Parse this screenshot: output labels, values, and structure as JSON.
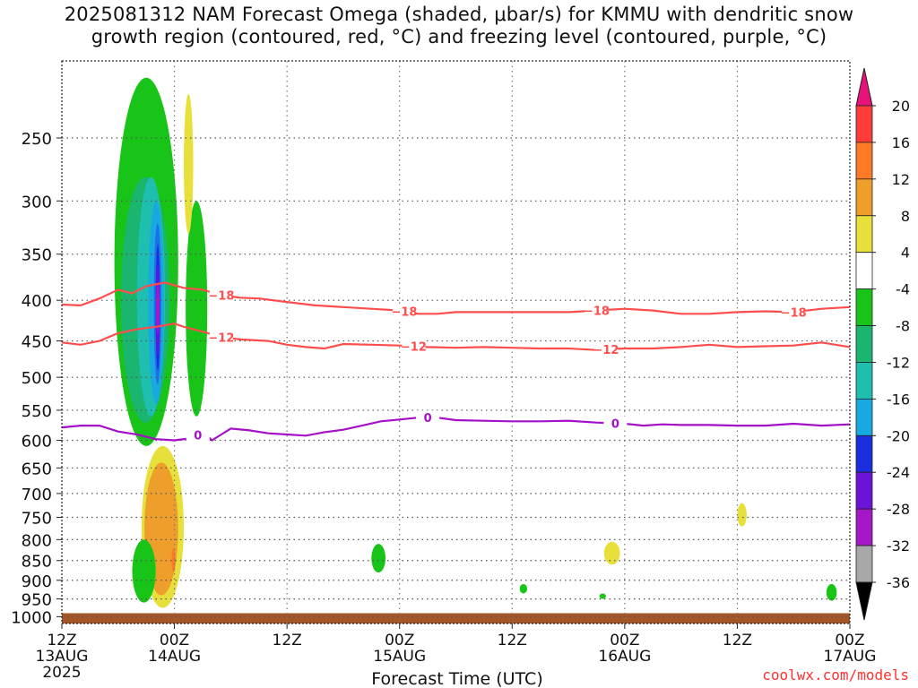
{
  "title": {
    "line1": "2025081312 NAM Forecast Omega (shaded, μbar/s) for KMMU with dendritic snow",
    "line2": "growth region (contoured, red, °C) and freezing level (contoured, purple, °C)"
  },
  "credit": "coolwx.com/models",
  "chart_data": {
    "type": "time-height cross section (filled contour + line contours)",
    "x_axis": {
      "label": "Forecast Time (UTC)",
      "ticks": [
        {
          "hour": 0,
          "label": "12Z",
          "sub": "13AUG",
          "year": "2025"
        },
        {
          "hour": 12,
          "label": "00Z",
          "sub": "14AUG"
        },
        {
          "hour": 24,
          "label": "12Z"
        },
        {
          "hour": 36,
          "label": "00Z",
          "sub": "15AUG"
        },
        {
          "hour": 48,
          "label": "12Z"
        },
        {
          "hour": 60,
          "label": "00Z",
          "sub": "16AUG"
        },
        {
          "hour": 72,
          "label": "12Z"
        },
        {
          "hour": 84,
          "label": "00Z",
          "sub": "17AUG"
        }
      ],
      "range_hours": [
        0,
        84
      ]
    },
    "y_axis": {
      "label": "",
      "units": "mb",
      "ticks": [
        250,
        300,
        350,
        400,
        450,
        500,
        550,
        600,
        650,
        700,
        750,
        800,
        850,
        900,
        950,
        1000
      ],
      "range": [
        200,
        1020
      ],
      "scale": "log-pressure",
      "reversed": true
    },
    "grid": "dotted",
    "colorbar": {
      "labels": [
        "20",
        "16",
        "12",
        "8",
        "4",
        "-4",
        "-8",
        "-12",
        "-16",
        "-20",
        "-24",
        "-28",
        "-32",
        "-36"
      ],
      "colors": [
        "#e8137a",
        "#ff3b3b",
        "#ff7a26",
        "#ee9f2b",
        "#e6c228",
        "#e8e03a",
        "#ffffff",
        "#17c417",
        "#1ab56e",
        "#1fbfb0",
        "#18a9e0",
        "#1f6fe8",
        "#1a2ee0",
        "#6b14d8",
        "#a617c8",
        "#a8a8a8",
        "#000000"
      ]
    },
    "contours": [
      {
        "name": "-18",
        "color": "#ff4d4d",
        "labels_at_hours": [
          17,
          36.5,
          57,
          78
        ],
        "points": [
          [
            0,
            405
          ],
          [
            2,
            406
          ],
          [
            4,
            398
          ],
          [
            6,
            388
          ],
          [
            7.5,
            392
          ],
          [
            9,
            384
          ],
          [
            11,
            380
          ],
          [
            12,
            383
          ],
          [
            13,
            386
          ],
          [
            15,
            388
          ],
          [
            17,
            394
          ],
          [
            19,
            397
          ],
          [
            21,
            398
          ],
          [
            24,
            402
          ],
          [
            27,
            406
          ],
          [
            30,
            408
          ],
          [
            33,
            410
          ],
          [
            36,
            412
          ],
          [
            38,
            416
          ],
          [
            40,
            416
          ],
          [
            42,
            414
          ],
          [
            45,
            414
          ],
          [
            48,
            414
          ],
          [
            51,
            414
          ],
          [
            54,
            414
          ],
          [
            57,
            412
          ],
          [
            60,
            410
          ],
          [
            63,
            412
          ],
          [
            66,
            416
          ],
          [
            69,
            416
          ],
          [
            72,
            414
          ],
          [
            75,
            413
          ],
          [
            78,
            414
          ],
          [
            81,
            410
          ],
          [
            84,
            408
          ]
        ]
      },
      {
        "name": "-12",
        "color": "#ff4d4d",
        "labels_at_hours": [
          17,
          37.5,
          58
        ],
        "points": [
          [
            0,
            452
          ],
          [
            2,
            455
          ],
          [
            4,
            450
          ],
          [
            6,
            440
          ],
          [
            8,
            435
          ],
          [
            10,
            432
          ],
          [
            12,
            428
          ],
          [
            13,
            432
          ],
          [
            15,
            438
          ],
          [
            17,
            445
          ],
          [
            19,
            448
          ],
          [
            22,
            450
          ],
          [
            24,
            455
          ],
          [
            26,
            458
          ],
          [
            28,
            460
          ],
          [
            30,
            454
          ],
          [
            33,
            455
          ],
          [
            36,
            456
          ],
          [
            39,
            458
          ],
          [
            42,
            459
          ],
          [
            45,
            458
          ],
          [
            48,
            459
          ],
          [
            51,
            460
          ],
          [
            54,
            460
          ],
          [
            57,
            462
          ],
          [
            60,
            460
          ],
          [
            63,
            460
          ],
          [
            66,
            458
          ],
          [
            69,
            455
          ],
          [
            72,
            458
          ],
          [
            75,
            457
          ],
          [
            78,
            456
          ],
          [
            81,
            452
          ],
          [
            84,
            458
          ]
        ]
      },
      {
        "name": "0",
        "color": "#a40fc8",
        "labels_at_hours": [
          14.5,
          39,
          59
        ],
        "points": [
          [
            0,
            578
          ],
          [
            2,
            575
          ],
          [
            4,
            575
          ],
          [
            6,
            585
          ],
          [
            8,
            590
          ],
          [
            10,
            598
          ],
          [
            12,
            600
          ],
          [
            14,
            596
          ],
          [
            15,
            585
          ],
          [
            16,
            600
          ],
          [
            17,
            590
          ],
          [
            18,
            580
          ],
          [
            20,
            583
          ],
          [
            22,
            588
          ],
          [
            24,
            590
          ],
          [
            26,
            592
          ],
          [
            28,
            586
          ],
          [
            30,
            582
          ],
          [
            32,
            575
          ],
          [
            34,
            568
          ],
          [
            36,
            565
          ],
          [
            38,
            562
          ],
          [
            40,
            562
          ],
          [
            42,
            566
          ],
          [
            45,
            567
          ],
          [
            48,
            568
          ],
          [
            51,
            568
          ],
          [
            54,
            567
          ],
          [
            57,
            570
          ],
          [
            60,
            572
          ],
          [
            62,
            575
          ],
          [
            64,
            573
          ],
          [
            66,
            574
          ],
          [
            69,
            574
          ],
          [
            72,
            575
          ],
          [
            75,
            575
          ],
          [
            78,
            572
          ],
          [
            81,
            575
          ],
          [
            84,
            573
          ]
        ]
      }
    ],
    "omega_regions": [
      {
        "value": -6,
        "hours": [
          5.6,
          12.4
        ],
        "mb": [
          210,
          610
        ]
      },
      {
        "value": -6,
        "hours": [
          13.2,
          15.5
        ],
        "mb": [
          300,
          560
        ]
      },
      {
        "value": -10,
        "hours": [
          6.3,
          11.5
        ],
        "mb": [
          280,
          570
        ]
      },
      {
        "value": -14,
        "hours": [
          8.0,
          11.0
        ],
        "mb": [
          280,
          560
        ]
      },
      {
        "value": -18,
        "hours": [
          9.2,
          10.9
        ],
        "mb": [
          300,
          540
        ]
      },
      {
        "value": -22,
        "hours": [
          9.8,
          10.6
        ],
        "mb": [
          320,
          510
        ]
      },
      {
        "value": -26,
        "hours": [
          10.0,
          10.45
        ],
        "mb": [
          340,
          490
        ]
      },
      {
        "value": -30,
        "hours": [
          10.1,
          10.35
        ],
        "mb": [
          360,
          470
        ]
      },
      {
        "value": -34,
        "hours": [
          10.15,
          10.3
        ],
        "mb": [
          380,
          440
        ]
      },
      {
        "value": 6,
        "hours": [
          8.5,
          13.0
        ],
        "mb": [
          610,
          975
        ]
      },
      {
        "value": 10,
        "hours": [
          8.8,
          12.4
        ],
        "mb": [
          640,
          940
        ]
      },
      {
        "value": 14,
        "hours": [
          11.7,
          12.1
        ],
        "mb": [
          820,
          880
        ]
      },
      {
        "value": -6,
        "hours": [
          7.5,
          10.0
        ],
        "mb": [
          800,
          960
        ]
      },
      {
        "value": -6,
        "hours": [
          33.0,
          34.5
        ],
        "mb": [
          810,
          880
        ]
      },
      {
        "value": -6,
        "hours": [
          48.8,
          49.6
        ],
        "mb": [
          910,
          935
        ]
      },
      {
        "value": -6,
        "hours": [
          57.3,
          58.0
        ],
        "mb": [
          935,
          950
        ]
      },
      {
        "value": -6,
        "hours": [
          81.5,
          82.6
        ],
        "mb": [
          910,
          955
        ]
      },
      {
        "value": 6,
        "hours": [
          57.8,
          59.5
        ],
        "mb": [
          805,
          860
        ]
      },
      {
        "value": 6,
        "hours": [
          72.0,
          73.0
        ],
        "mb": [
          720,
          770
        ]
      },
      {
        "value": 6,
        "hours": [
          13.0,
          14.0
        ],
        "mb": [
          220,
          330
        ]
      }
    ],
    "terrain": {
      "color": "#a55628",
      "top_mb": 990
    }
  }
}
